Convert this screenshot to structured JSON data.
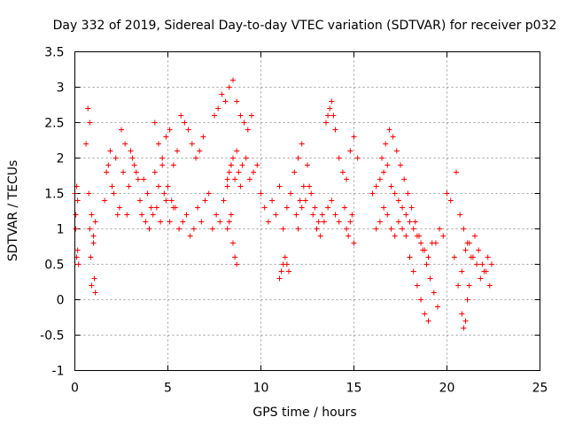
{
  "chart_data": {
    "type": "scatter",
    "title": "Day 332 of 2019, Sidereal Day-to-day VTEC variation (SDTVAR) for receiver p032",
    "xlabel": "GPS time / hours",
    "ylabel": "SDTVAR / TECUs",
    "xlim": [
      0,
      25
    ],
    "ylim": [
      -1,
      3.5
    ],
    "xticks": [
      0,
      5,
      10,
      15,
      20,
      25
    ],
    "yticks": [
      -1,
      -0.5,
      0,
      0.5,
      1,
      1.5,
      2,
      2.5,
      3,
      3.5
    ],
    "xtick_labels": [
      "0",
      "5",
      "10",
      "15",
      "20",
      "25"
    ],
    "ytick_labels": [
      "-1",
      "-0.5",
      "0",
      "0.5",
      "1",
      "1.5",
      "2",
      "2.5",
      "3",
      "3.5"
    ],
    "grid": true,
    "marker": "+",
    "color": "#ff0000",
    "series": [
      {
        "name": "SDTVAR p032",
        "x": [
          0.0,
          0.05,
          0.1,
          0.15,
          0.2,
          0.05,
          0.1,
          0.15,
          0.6,
          0.7,
          0.8,
          0.9,
          1.0,
          0.75,
          0.8,
          0.85,
          0.9,
          1.05,
          1.1,
          1.0,
          1.1,
          1.6,
          1.8,
          2.0,
          2.2,
          2.4,
          2.6,
          2.8,
          3.0,
          3.2,
          3.4,
          1.7,
          1.9,
          2.1,
          2.3,
          2.5,
          2.7,
          2.9,
          3.1,
          3.3,
          3.5,
          3.7,
          3.9,
          4.1,
          4.3,
          4.5,
          4.7,
          4.9,
          5.1,
          5.3,
          3.6,
          3.8,
          4.0,
          4.2,
          4.4,
          4.6,
          4.8,
          5.0,
          5.2,
          4.3,
          4.5,
          4.7,
          4.9,
          5.1,
          5.3,
          5.5,
          5.7,
          5.9,
          6.1,
          6.3,
          6.5,
          6.7,
          6.9,
          5.4,
          5.6,
          5.8,
          6.0,
          6.2,
          6.4,
          6.6,
          6.8,
          7.0,
          7.2,
          7.4,
          7.6,
          7.8,
          8.0,
          8.2,
          8.4,
          7.5,
          7.7,
          7.9,
          8.1,
          8.3,
          8.5,
          8.7,
          8.9,
          9.1,
          9.3,
          9.5,
          8.2,
          8.3,
          8.4,
          8.5,
          8.6,
          8.7,
          8.8,
          8.9,
          9.0,
          9.2,
          9.4,
          9.6,
          9.8,
          8.5,
          8.6,
          8.7,
          8.2,
          8.3,
          8.4,
          10.0,
          10.2,
          10.4,
          10.6,
          10.8,
          11.0,
          11.2,
          11.4,
          11.6,
          11.8,
          12.0,
          12.2,
          11.0,
          11.1,
          11.2,
          11.3,
          11.4,
          11.5,
          11.9,
          12.1,
          12.3,
          12.5,
          12.7,
          12.9,
          13.1,
          13.3,
          12.0,
          12.2,
          12.4,
          12.6,
          12.8,
          13.0,
          13.2,
          13.4,
          13.6,
          13.8,
          14.0,
          14.2,
          13.5,
          13.6,
          13.7,
          13.8,
          13.9,
          14.0,
          14.2,
          14.4,
          14.6,
          14.8,
          15.0,
          15.2,
          14.5,
          14.6,
          14.7,
          14.8,
          14.9,
          15.0,
          16.0,
          16.2,
          16.4,
          16.6,
          16.8,
          17.0,
          17.2,
          17.4,
          17.6,
          17.8,
          18.0,
          18.2,
          18.4,
          18.6,
          18.8,
          19.0,
          19.2,
          16.2,
          16.4,
          16.6,
          16.8,
          17.0,
          17.2,
          17.4,
          17.6,
          17.8,
          18.0,
          18.2,
          18.4,
          18.6,
          18.8,
          19.0,
          16.5,
          16.7,
          16.9,
          17.1,
          17.3,
          17.5,
          17.7,
          17.9,
          18.1,
          18.3,
          18.5,
          18.7,
          18.9,
          19.1,
          19.3,
          19.5,
          19.4,
          19.6,
          19.8,
          20.0,
          20.2,
          20.4,
          20.6,
          20.8,
          21.0,
          21.2,
          21.4,
          21.6,
          21.8,
          22.0,
          22.2,
          22.4,
          20.5,
          20.7,
          20.9,
          21.1,
          21.3,
          21.5,
          21.7,
          21.9,
          22.1,
          22.3,
          20.8,
          20.9,
          21.0,
          21.1,
          21.2
        ],
        "y": [
          1.5,
          1.2,
          0.6,
          1.4,
          0.5,
          1.0,
          1.6,
          0.7,
          2.2,
          2.7,
          2.5,
          1.2,
          0.8,
          1.5,
          1.0,
          0.6,
          0.2,
          0.3,
          0.1,
          0.9,
          1.1,
          1.4,
          1.9,
          1.6,
          2.0,
          1.3,
          1.8,
          1.2,
          2.1,
          1.9,
          1.7,
          1.8,
          2.1,
          1.5,
          1.2,
          2.4,
          2.2,
          1.6,
          2.0,
          1.8,
          1.4,
          1.7,
          1.5,
          1.3,
          1.8,
          1.6,
          1.9,
          1.4,
          1.1,
          1.3,
          1.2,
          1.1,
          1.0,
          1.2,
          1.3,
          1.1,
          1.5,
          1.6,
          1.4,
          2.5,
          2.2,
          2.0,
          2.3,
          2.4,
          1.9,
          2.1,
          2.6,
          2.5,
          2.4,
          2.2,
          2.0,
          2.1,
          2.3,
          1.3,
          1.0,
          1.1,
          1.2,
          0.9,
          1.0,
          1.3,
          1.1,
          1.4,
          1.5,
          1.0,
          1.2,
          1.1,
          1.4,
          1.7,
          1.9,
          2.6,
          2.7,
          2.9,
          2.8,
          3.0,
          3.1,
          2.8,
          2.6,
          2.5,
          2.4,
          2.6,
          1.6,
          1.8,
          1.9,
          2.0,
          1.7,
          2.1,
          1.8,
          1.6,
          1.9,
          2.0,
          1.7,
          1.8,
          1.9,
          0.8,
          0.6,
          0.5,
          1.0,
          1.1,
          1.2,
          1.5,
          1.3,
          1.1,
          1.4,
          1.2,
          1.6,
          1.0,
          1.3,
          1.5,
          1.8,
          2.0,
          2.2,
          0.3,
          0.4,
          0.5,
          0.6,
          0.5,
          0.4,
          1.2,
          1.4,
          1.6,
          1.9,
          1.5,
          1.3,
          1.1,
          1.2,
          1.0,
          1.3,
          1.4,
          1.6,
          1.2,
          1.0,
          0.9,
          1.1,
          1.3,
          1.4,
          1.2,
          1.1,
          2.5,
          2.6,
          2.7,
          2.8,
          2.6,
          2.4,
          2.0,
          1.8,
          1.7,
          2.1,
          2.3,
          2.0,
          1.3,
          1.0,
          0.9,
          1.1,
          1.2,
          0.8,
          1.5,
          1.6,
          1.7,
          1.8,
          1.9,
          1.6,
          1.5,
          1.4,
          1.3,
          1.2,
          1.1,
          1.0,
          0.9,
          0.8,
          0.7,
          0.6,
          0.8,
          1.0,
          1.1,
          1.3,
          1.2,
          1.0,
          0.9,
          1.1,
          1.0,
          0.9,
          0.6,
          0.4,
          0.2,
          0.0,
          -0.2,
          -0.3,
          2.0,
          2.2,
          2.4,
          2.3,
          2.1,
          1.9,
          1.7,
          1.5,
          1.3,
          1.1,
          0.9,
          0.7,
          0.5,
          0.3,
          0.1,
          -0.1,
          0.8,
          1.0,
          0.9,
          1.5,
          1.4,
          0.6,
          0.2,
          0.4,
          0.7,
          0.8,
          0.6,
          0.5,
          0.3,
          0.4,
          0.6,
          0.5,
          1.8,
          1.2,
          1.0,
          0.8,
          0.6,
          0.9,
          0.7,
          0.5,
          0.4,
          0.2,
          -0.2,
          -0.4,
          -0.3,
          0.0,
          0.2
        ]
      }
    ]
  }
}
